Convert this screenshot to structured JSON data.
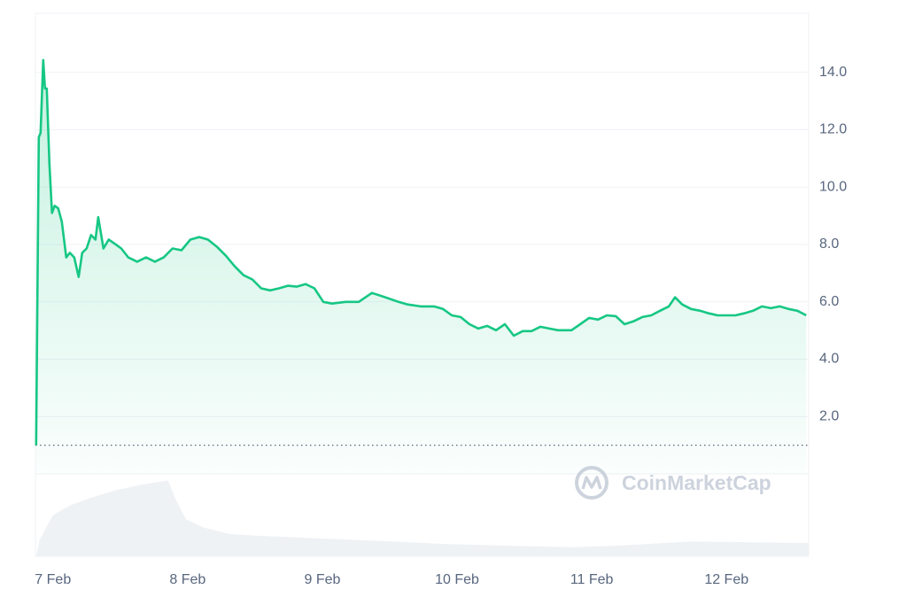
{
  "chart_data": {
    "type": "line",
    "color": "#16c784",
    "x": [
      -0.125,
      -0.105,
      -0.092,
      -0.072,
      -0.059,
      -0.046,
      -0.026,
      -0.007,
      0.013,
      0.039,
      0.066,
      0.099,
      0.125,
      0.158,
      0.191,
      0.217,
      0.25,
      0.283,
      0.316,
      0.336,
      0.375,
      0.414,
      0.461,
      0.507,
      0.559,
      0.625,
      0.691,
      0.757,
      0.822,
      0.888,
      0.954,
      1.02,
      1.086,
      1.151,
      1.217,
      1.283,
      1.349,
      1.414,
      1.48,
      1.546,
      1.612,
      1.678,
      1.743,
      1.809,
      1.875,
      1.941,
      2.007,
      2.072,
      2.171,
      2.27,
      2.368,
      2.467,
      2.566,
      2.632,
      2.73,
      2.829,
      2.895,
      2.961,
      3.026,
      3.092,
      3.158,
      3.224,
      3.289,
      3.355,
      3.421,
      3.487,
      3.553,
      3.618,
      3.684,
      3.75,
      3.849,
      3.914,
      3.98,
      4.046,
      4.112,
      4.178,
      4.243,
      4.309,
      4.375,
      4.441,
      4.507,
      4.572,
      4.618,
      4.671,
      4.737,
      4.803,
      4.868,
      4.934,
      5.0,
      5.066,
      5.132,
      5.197,
      5.263,
      5.329,
      5.395,
      5.461,
      5.526,
      5.592
    ],
    "values": [
      1.0,
      11.74,
      11.89,
      14.43,
      13.44,
      13.44,
      10.81,
      9.1,
      9.35,
      9.26,
      8.79,
      7.55,
      7.71,
      7.55,
      6.87,
      7.71,
      7.86,
      8.33,
      8.17,
      8.95,
      7.86,
      8.17,
      8.02,
      7.86,
      7.55,
      7.4,
      7.55,
      7.4,
      7.55,
      7.86,
      7.8,
      8.17,
      8.26,
      8.17,
      7.92,
      7.61,
      7.24,
      6.93,
      6.78,
      6.47,
      6.4,
      6.47,
      6.56,
      6.53,
      6.62,
      6.47,
      6.0,
      5.94,
      6.0,
      6.0,
      6.31,
      6.16,
      6.0,
      5.91,
      5.84,
      5.84,
      5.75,
      5.53,
      5.47,
      5.22,
      5.07,
      5.16,
      5.01,
      5.22,
      4.82,
      4.98,
      4.98,
      5.13,
      5.07,
      5.01,
      5.01,
      5.22,
      5.44,
      5.38,
      5.53,
      5.5,
      5.22,
      5.32,
      5.47,
      5.53,
      5.69,
      5.84,
      6.16,
      5.91,
      5.75,
      5.69,
      5.6,
      5.53,
      5.53,
      5.53,
      5.6,
      5.69,
      5.84,
      5.78,
      5.84,
      5.75,
      5.69,
      5.53
    ],
    "xlim": [
      -0.13,
      5.61
    ],
    "xticks": [
      {
        "value": 0,
        "label": "7 Feb"
      },
      {
        "value": 1,
        "label": "8 Feb"
      },
      {
        "value": 2,
        "label": "9 Feb"
      },
      {
        "value": 3,
        "label": "10 Feb"
      },
      {
        "value": 4,
        "label": "11 Feb"
      },
      {
        "value": 5,
        "label": "12 Feb"
      }
    ],
    "ylim": [
      0,
      16
    ],
    "yticks": [
      {
        "value": 2,
        "label": "2.0"
      },
      {
        "value": 4,
        "label": "4.0"
      },
      {
        "value": 6,
        "label": "6.0"
      },
      {
        "value": 8,
        "label": "8.0"
      },
      {
        "value": 10,
        "label": "10.0"
      },
      {
        "value": 12,
        "label": "12.0"
      },
      {
        "value": 14,
        "label": "14.0"
      }
    ],
    "grid": true,
    "baseline": 1.0,
    "watermark": "CoinMarketCap",
    "volume": {
      "type": "area",
      "color": "#eff2f5",
      "x": [
        -0.125,
        -0.099,
        0,
        0.132,
        0.263,
        0.461,
        0.658,
        0.855,
        0.908,
        0.987,
        1.118,
        1.316,
        1.513,
        2.237,
        2.895,
        3.553,
        3.882,
        4.211,
        4.737,
        5.197,
        5.612
      ],
      "values": [
        0,
        20,
        50,
        62,
        70,
        80,
        87,
        92,
        70,
        45,
        35,
        27,
        25,
        20,
        15,
        12,
        11,
        13,
        18,
        17,
        16
      ],
      "ylim": [
        0,
        100
      ]
    }
  }
}
